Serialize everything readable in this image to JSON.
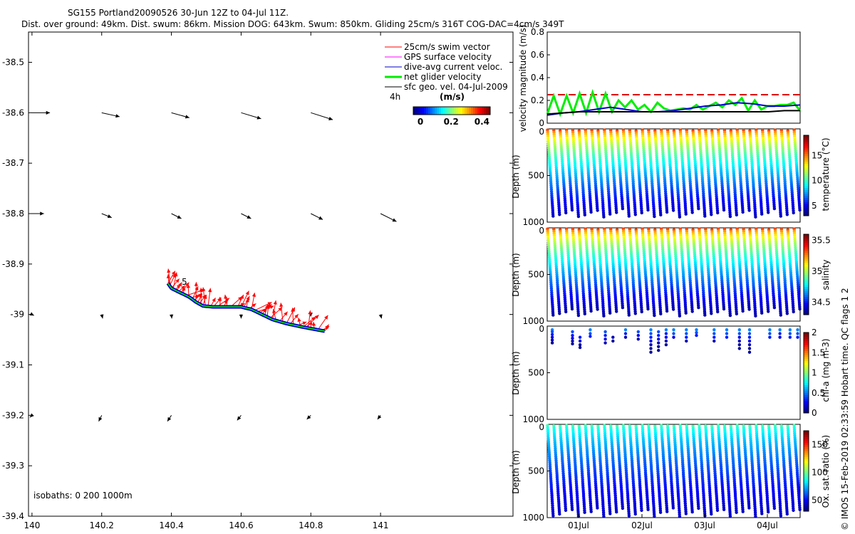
{
  "header": {
    "line1": "SG155 Portland20090526 30-Jun 12Z to 04-Jul 11Z.",
    "line2": "Dist. over ground: 49km. Dist. swum: 86km. Mission DOG: 643km. Swum: 850km. Gliding 25cm/s 316T COG-DAC=4cm/s 349T"
  },
  "footer": "© IMOS 15-Feb-2019 02:33:59 Hobart time. QC flags 1  2",
  "colors": {
    "swim": "#ff0000",
    "gps": "#ff00ff",
    "dac": "#0000cc",
    "net": "#00ee00",
    "sfc": "#000000",
    "limit": "#dd0000"
  },
  "chart_data": [
    {
      "type": "scatter",
      "name": "track-map",
      "xticks": [
        "140",
        "140.2",
        "140.4",
        "140.6",
        "140.8",
        "141"
      ],
      "yticks": [
        "-38.5",
        "-38.6",
        "-38.7",
        "-38.8",
        "-38.9",
        "-39",
        "-39.1",
        "-39.2",
        "-39.3",
        "-39.4"
      ],
      "xlim": [
        139.99,
        141.38
      ],
      "ylim": [
        -39.4,
        -38.44
      ],
      "legend": [
        {
          "label": "25cm/s swim vector",
          "key": "swim"
        },
        {
          "label": "GPS surface velocity",
          "key": "gps"
        },
        {
          "label": "dive-avg current veloc.",
          "key": "dac"
        },
        {
          "label": "net glider velocity",
          "key": "net"
        },
        {
          "label": "sfc geo. vel. 04-Jul-2009",
          "key": "sfc"
        }
      ],
      "time_label": "4h",
      "colorbar": {
        "label": "(m/s)",
        "ticks": [
          "0",
          "0.2",
          "0.4"
        ],
        "range": [
          0,
          0.5
        ]
      },
      "isobaths_label": "isobaths: 0   200   1000m",
      "start_label": "5",
      "sfc_vectors": {
        "lons": [
          140,
          140.2,
          140.4,
          140.6,
          140.8,
          141
        ],
        "rows": [
          {
            "lat": -38.6,
            "u": [
              0.09,
              0.09,
              0.09,
              0.1,
              0.11,
              0.0
            ],
            "v": [
              0.0,
              -0.02,
              -0.025,
              -0.03,
              -0.035,
              0.0
            ]
          },
          {
            "lat": -38.8,
            "u": [
              0.06,
              0.05,
              0.05,
              0.05,
              0.06,
              0.08
            ],
            "v": [
              0.0,
              -0.02,
              -0.025,
              -0.025,
              -0.03,
              -0.04
            ]
          },
          {
            "lat": -39.0,
            "u": [
              0.01,
              0.005,
              0.002,
              0.0,
              0.0,
              0.005
            ],
            "v": [
              -0.005,
              -0.02,
              -0.02,
              -0.02,
              -0.01,
              -0.02
            ]
          },
          {
            "lat": -39.2,
            "u": [
              -0.01,
              -0.015,
              -0.02,
              -0.02,
              -0.02,
              -0.015
            ],
            "v": [
              -0.01,
              -0.03,
              -0.03,
              -0.025,
              -0.02,
              -0.02
            ]
          }
        ]
      },
      "track": [
        [
          140.39,
          -38.938
        ],
        [
          140.4,
          -38.948
        ],
        [
          140.42,
          -38.955
        ],
        [
          140.45,
          -38.965
        ],
        [
          140.47,
          -38.975
        ],
        [
          140.49,
          -38.983
        ],
        [
          140.52,
          -38.985
        ],
        [
          140.56,
          -38.985
        ],
        [
          140.6,
          -38.985
        ],
        [
          140.63,
          -38.99
        ],
        [
          140.66,
          -39.0
        ],
        [
          140.69,
          -39.01
        ],
        [
          140.73,
          -39.018
        ],
        [
          140.77,
          -39.024
        ],
        [
          140.8,
          -39.028
        ],
        [
          140.84,
          -39.033
        ]
      ]
    },
    {
      "type": "line",
      "name": "velocity-magnitude",
      "ylabel": "velocity magnitude (m/s)",
      "ylim": [
        0,
        0.8
      ],
      "yticks": [
        "0",
        "0.2",
        "0.4",
        "0.6",
        "0.8"
      ],
      "limit": 0.25,
      "series": [
        {
          "name": "net glider velocity",
          "key": "net",
          "values": [
            0.08,
            0.24,
            0.08,
            0.24,
            0.09,
            0.26,
            0.09,
            0.27,
            0.1,
            0.26,
            0.1,
            0.2,
            0.14,
            0.2,
            0.12,
            0.16,
            0.1,
            0.18,
            0.13,
            0.11,
            0.12,
            0.13,
            0.12,
            0.16,
            0.12,
            0.15,
            0.18,
            0.14,
            0.2,
            0.16,
            0.22,
            0.11,
            0.2,
            0.12,
            0.15,
            0.15,
            0.16,
            0.16,
            0.18,
            0.11
          ]
        },
        {
          "name": "dive-avg current veloc.",
          "key": "dac",
          "values": [
            0.07,
            0.09,
            0.1,
            0.12,
            0.14,
            0.12,
            0.1,
            0.1,
            0.11,
            0.13,
            0.15,
            0.16,
            0.18,
            0.17,
            0.15,
            0.15,
            0.16
          ]
        },
        {
          "name": "sfc geo. vel.",
          "key": "sfc",
          "values": [
            0.08,
            0.09,
            0.1,
            0.1,
            0.1,
            0.1,
            0.1,
            0.1,
            0.1,
            0.1,
            0.1,
            0.1,
            0.1,
            0.1,
            0.1,
            0.11,
            0.11
          ]
        }
      ]
    },
    {
      "type": "scatter",
      "name": "temperature-section",
      "ylabel": "Depth (m)",
      "yticks": [
        "500",
        "1000"
      ],
      "ylim": [
        1000,
        0
      ],
      "profiles": 40,
      "max_depth": 950,
      "cbar_label": "temperature (°C)",
      "cbar_ticks": [
        "5",
        "10",
        "15"
      ],
      "cbar_range": [
        3,
        19
      ],
      "surface_value": 16,
      "bottom_value": 4
    },
    {
      "type": "scatter",
      "name": "salinity-section",
      "ylabel": "Depth (m)",
      "yticks": [
        "500",
        "1000"
      ],
      "ylim": [
        1000,
        0
      ],
      "profiles": 40,
      "max_depth": 950,
      "cbar_label": "salinity",
      "cbar_ticks": [
        "34.5",
        "35",
        "35.5"
      ],
      "cbar_range": [
        34.3,
        35.6
      ],
      "surface_value": 35.35,
      "bottom_value": 34.35
    },
    {
      "type": "scatter",
      "name": "chla-section",
      "ylabel": "Depth (m)",
      "yticks": [
        "500",
        "1000"
      ],
      "ylim": [
        1000,
        0
      ],
      "cbar_label": "chl-a (mg m-3)",
      "cbar_ticks": [
        "0",
        "0.5",
        "1",
        "1.5",
        "2"
      ],
      "cbar_range": [
        0,
        2
      ],
      "points": [
        {
          "t": 0.02,
          "d": [
            40,
            60,
            90,
            120,
            150,
            180
          ],
          "c": [
            0.5,
            0.4,
            0.3,
            0.2,
            0.1,
            0.05
          ]
        },
        {
          "t": 0.1,
          "d": [
            60,
            100,
            130,
            160,
            190
          ],
          "c": [
            0.4,
            0.3,
            0.2,
            0.1,
            0.05
          ]
        },
        {
          "t": 0.13,
          "d": [
            120,
            160,
            200,
            230
          ],
          "c": [
            0.3,
            0.2,
            0.05,
            0.05
          ]
        },
        {
          "t": 0.17,
          "d": [
            40,
            80,
            110
          ],
          "c": [
            0.5,
            0.4,
            0.3
          ]
        },
        {
          "t": 0.23,
          "d": [
            60,
            100,
            140,
            180
          ],
          "c": [
            0.4,
            0.3,
            0.2,
            0.1
          ]
        },
        {
          "t": 0.26,
          "d": [
            120,
            160
          ],
          "c": [
            0.1,
            0.05
          ]
        },
        {
          "t": 0.31,
          "d": [
            40,
            80,
            120
          ],
          "c": [
            0.5,
            0.3,
            0.1
          ]
        },
        {
          "t": 0.36,
          "d": [
            60,
            100,
            140
          ],
          "c": [
            0.4,
            0.2,
            0.1
          ]
        },
        {
          "t": 0.41,
          "d": [
            40,
            80,
            120,
            160,
            200,
            240,
            280
          ],
          "c": [
            0.5,
            0.4,
            0.3,
            0.2,
            0.1,
            0.05,
            0.05
          ]
        },
        {
          "t": 0.44,
          "d": [
            60,
            100,
            140,
            180,
            220,
            260
          ],
          "c": [
            0.4,
            0.3,
            0.2,
            0.1,
            0.05,
            0.05
          ]
        },
        {
          "t": 0.47,
          "d": [
            40,
            80,
            120,
            160,
            200
          ],
          "c": [
            0.5,
            0.3,
            0.2,
            0.1,
            0.05
          ]
        },
        {
          "t": 0.5,
          "d": [
            40,
            80,
            120
          ],
          "c": [
            0.5,
            0.4,
            0.2
          ]
        },
        {
          "t": 0.55,
          "d": [
            40,
            80,
            120,
            160
          ],
          "c": [
            0.5,
            0.4,
            0.3,
            0.1
          ]
        },
        {
          "t": 0.59,
          "d": [
            40,
            70,
            100
          ],
          "c": [
            0.5,
            0.4,
            0.3
          ]
        },
        {
          "t": 0.66,
          "d": [
            40,
            80,
            120,
            160
          ],
          "c": [
            0.5,
            0.4,
            0.3,
            0.1
          ]
        },
        {
          "t": 0.71,
          "d": [
            40,
            80,
            120
          ],
          "c": [
            0.5,
            0.4,
            0.3
          ]
        },
        {
          "t": 0.76,
          "d": [
            40,
            80,
            120,
            160,
            200,
            240
          ],
          "c": [
            0.5,
            0.4,
            0.2,
            0.1,
            0.05,
            0.05
          ]
        },
        {
          "t": 0.8,
          "d": [
            40,
            80,
            120,
            160,
            200,
            240,
            280
          ],
          "c": [
            0.5,
            0.4,
            0.3,
            0.2,
            0.1,
            0.05,
            0.05
          ]
        },
        {
          "t": 0.88,
          "d": [
            40,
            80,
            120
          ],
          "c": [
            0.5,
            0.4,
            0.3
          ]
        },
        {
          "t": 0.92,
          "d": [
            40,
            80,
            120
          ],
          "c": [
            0.5,
            0.3,
            0.2
          ]
        },
        {
          "t": 0.96,
          "d": [
            40,
            80,
            120
          ],
          "c": [
            0.5,
            0.4,
            0.3
          ]
        },
        {
          "t": 0.99,
          "d": [
            40,
            80,
            120
          ],
          "c": [
            0.5,
            0.4,
            0.3
          ]
        }
      ]
    },
    {
      "type": "scatter",
      "name": "oxygen-section",
      "ylabel": "Depth (m)",
      "yticks": [
        "500",
        "1000"
      ],
      "ylim": [
        1000,
        0
      ],
      "profiles": 40,
      "max_depth": 990,
      "cbar_label": "Ox. sat. ratio (%)",
      "cbar_ticks": [
        "50",
        "100",
        "150"
      ],
      "cbar_range": [
        30,
        175
      ],
      "surface_value": 95,
      "bottom_value": 40
    }
  ],
  "time_axis": {
    "tick_labels": [
      "01Jul",
      "02Jul",
      "03Jul",
      "04Jul"
    ],
    "start": "30-Jun 12Z",
    "end": "04-Jul 11Z"
  }
}
